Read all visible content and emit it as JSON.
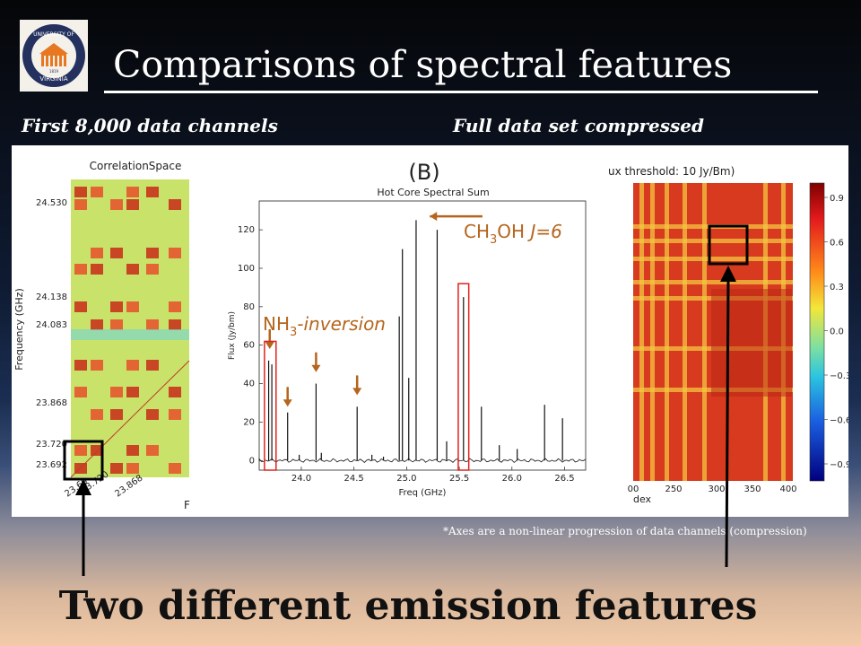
{
  "slide": {
    "title": "Comparisons of spectral features",
    "left_caption": "First 8,000 data channels",
    "right_caption": "Full data set compressed",
    "footnote": "*Axes are a non-linear progression of data channels (compression)",
    "bottom_text": "Two different emission features",
    "logo": {
      "line1": "UNIVERSITY OF",
      "line2": "VIRGINIA",
      "year": "1819"
    }
  },
  "left_plot": {
    "title": "CorrelationSpace",
    "ylabel": "Frequency (GHz)",
    "yticks": [
      "24.530",
      "24.138",
      "24.083",
      "23.868",
      "23.720",
      "23.692"
    ],
    "xticks": [
      "23.69",
      "23.720",
      "23.868"
    ],
    "xlabel_fragment": "F"
  },
  "right_plot": {
    "title_fragment": "ux threshold: 10 Jy/Bm)",
    "xticks": [
      "00",
      "250",
      "300",
      "350",
      "400"
    ],
    "xlabel_fragment": "dex",
    "colorbar_ticks": [
      "0.9",
      "0.6",
      "0.3",
      "0.0",
      "−0.3",
      "−0.6",
      "−0.9"
    ]
  },
  "chart_data": {
    "type": "line",
    "panel_label": "(B)",
    "title": "Hot Core Spectral Sum",
    "xlabel": "Freq (GHz)",
    "ylabel": "Flux (Jy/bm)",
    "xlim": [
      23.6,
      26.7
    ],
    "ylim": [
      -5,
      135
    ],
    "xticks": [
      24.0,
      24.5,
      25.0,
      25.5,
      26.0,
      26.5
    ],
    "xtick_labels": [
      "24.0",
      "24.5",
      "25.0",
      "25.5",
      "26.0",
      "26.5"
    ],
    "yticks": [
      0,
      20,
      40,
      60,
      80,
      100,
      120
    ],
    "peaks": [
      {
        "x": 23.69,
        "y": 52
      },
      {
        "x": 23.72,
        "y": 50
      },
      {
        "x": 23.87,
        "y": 25
      },
      {
        "x": 24.14,
        "y": 40
      },
      {
        "x": 24.53,
        "y": 28
      },
      {
        "x": 24.93,
        "y": 75
      },
      {
        "x": 24.96,
        "y": 110
      },
      {
        "x": 25.02,
        "y": 43
      },
      {
        "x": 25.09,
        "y": 125
      },
      {
        "x": 25.29,
        "y": 120
      },
      {
        "x": 25.38,
        "y": 10
      },
      {
        "x": 25.54,
        "y": 85
      },
      {
        "x": 25.71,
        "y": 28
      },
      {
        "x": 25.88,
        "y": 8
      },
      {
        "x": 26.05,
        "y": 6
      },
      {
        "x": 26.31,
        "y": 29
      },
      {
        "x": 26.48,
        "y": 22
      },
      {
        "x": 23.98,
        "y": 3
      },
      {
        "x": 24.19,
        "y": 4
      },
      {
        "x": 24.67,
        "y": 3
      },
      {
        "x": 24.78,
        "y": 2
      }
    ],
    "annotations": {
      "nh3": {
        "text": "NH",
        "sub": "3",
        "suffix": "-inversion"
      },
      "ch3oh": {
        "text": "CH",
        "sub": "3",
        "mid": "OH ",
        "italic": "J=6"
      }
    },
    "accent_color": "#b5651d",
    "highlight_color": "#e0221e"
  },
  "colors": {
    "text": "#ffffff",
    "arrow": "#000000"
  }
}
